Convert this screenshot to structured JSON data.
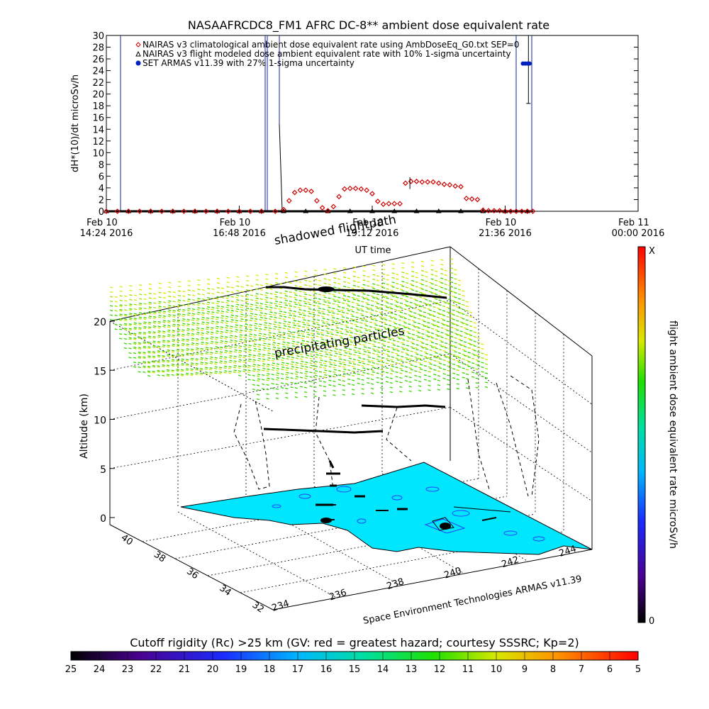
{
  "chart_data": [
    {
      "type": "scatter",
      "title": "NASAAFRCDC8_FM1 AFRC DC-8** ambient dose equivalent rate",
      "xlabel": "UT time",
      "ylabel": "dH*(10)/dt microSv/h",
      "ylim": [
        0,
        30
      ],
      "y_ticks": [
        0,
        2,
        4,
        6,
        8,
        10,
        12,
        14,
        16,
        18,
        20,
        22,
        24,
        26,
        28,
        30
      ],
      "x_ticks": [
        {
          "line1": "Feb 10",
          "line2": "14:24 2016"
        },
        {
          "line1": "Feb 10",
          "line2": "16:48 2016"
        },
        {
          "line1": "Feb 10",
          "line2": "19:12 2016"
        },
        {
          "line1": "Feb 10",
          "line2": "21:36 2016"
        },
        {
          "line1": "Feb 11",
          "line2": "00:00 2016"
        }
      ],
      "legend_position": "top-left",
      "series": [
        {
          "name": "NAIRAS v3 climatological ambient dose equivalent rate using AmbDoseEq_G0.txt SEP=0",
          "marker": "diamond",
          "color": "#d00000",
          "x_hours": [
            14.4,
            14.6,
            14.8,
            15.0,
            15.2,
            15.4,
            15.6,
            15.8,
            16.0,
            16.2,
            16.4,
            16.6,
            16.8,
            17.0,
            17.2,
            17.45,
            17.6,
            17.7,
            17.8,
            17.9,
            18.0,
            18.1,
            18.2,
            18.3,
            18.4,
            18.5,
            18.6,
            18.7,
            18.8,
            18.9,
            19.0,
            19.1,
            19.2,
            19.3,
            19.4,
            19.5,
            19.6,
            19.7,
            19.8,
            19.9,
            20.0,
            20.1,
            20.2,
            20.3,
            20.4,
            20.5,
            20.6,
            20.7,
            20.8,
            20.9,
            21.0,
            21.1,
            21.2,
            21.3,
            21.4,
            21.5,
            21.6,
            21.7,
            21.8,
            21.9,
            22.0,
            22.1
          ],
          "values": [
            0,
            0,
            0,
            0,
            0,
            0,
            0,
            0,
            0,
            0,
            0,
            0,
            0,
            0,
            0,
            0,
            0.3,
            1.8,
            3.2,
            3.6,
            3.6,
            3.4,
            1.8,
            0.6,
            0.1,
            0.8,
            2.5,
            3.8,
            3.9,
            3.9,
            3.8,
            3.6,
            3.0,
            1.7,
            1.2,
            1.3,
            1.3,
            1.3,
            4.8,
            5.1,
            5.1,
            5.0,
            5.0,
            5.0,
            4.8,
            4.6,
            4.5,
            4.3,
            4.2,
            2.2,
            2.1,
            2.0,
            0.2,
            0.1,
            0.1,
            0.1,
            0,
            0,
            0,
            0,
            0,
            0
          ]
        },
        {
          "name": "NAIRAS v3 flight modeled dose ambient equivalent rate with 10% 1-sigma uncertainty",
          "marker": "triangle",
          "color": "#000000",
          "x_hours": [
            14.4,
            14.8,
            15.2,
            15.6,
            16.0,
            16.4,
            16.8,
            17.2,
            17.6,
            18.0,
            18.4,
            18.8,
            19.2,
            19.6,
            20.0,
            20.4,
            20.8,
            21.2,
            21.6,
            22.0
          ],
          "values": [
            0,
            0,
            0,
            0,
            0,
            0,
            0,
            0,
            0,
            0,
            0,
            0,
            0,
            0,
            0,
            0,
            0,
            0,
            0,
            0
          ]
        },
        {
          "name": "SET ARMAS v11.39 with 27% 1-sigma uncertainty",
          "marker": "circle",
          "color": "#0020c0",
          "x_hours": [
            21.92,
            21.96,
            22.0,
            22.04
          ],
          "values": [
            25.2,
            25.2,
            25.2,
            25.2
          ]
        }
      ]
    },
    {
      "type": "scatter",
      "title": "",
      "ylabel": "Altitude (km)",
      "xlabel": "Space Environment Technologies ARMAS v11.39",
      "z_ticks": [
        "0",
        "5",
        "10",
        "15",
        "20"
      ],
      "lat_ticks": [
        "32",
        "34",
        "36",
        "38",
        "40"
      ],
      "lon_ticks": [
        "234",
        "236",
        "238",
        "240",
        "242",
        "244"
      ],
      "annotations": [
        "shadowed flightpath",
        "precipitating particles"
      ],
      "colorbar_label": "flight ambient dose equivalent rate microSv/h",
      "colorbar_min": "0",
      "colorbar_max": "X"
    },
    {
      "type": "heatmap",
      "title": "Cutoff rigidity (Rc) >25 km (GV: red = greatest hazard; courtesy SSSRC; Kp=2)",
      "categories": [
        "25",
        "24",
        "23",
        "22",
        "21",
        "20",
        "19",
        "18",
        "17",
        "16",
        "15",
        "14",
        "13",
        "12",
        "11",
        "10",
        "9",
        "8",
        "7",
        "6",
        "5"
      ]
    }
  ]
}
